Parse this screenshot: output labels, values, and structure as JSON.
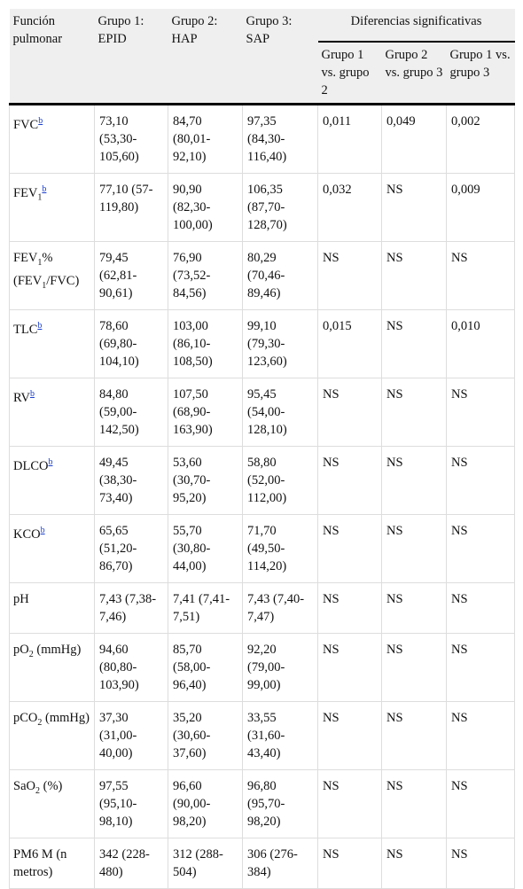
{
  "table": {
    "header": {
      "label": "Función pulmonar",
      "groups": [
        "Grupo 1: EPID",
        "Grupo 2: HAP",
        "Grupo 3: SAP"
      ],
      "differences": "Diferencias significativas",
      "comparisons": [
        "Grupo 1 vs. grupo 2",
        "Grupo 2 vs. grupo 3",
        "Grupo 1 vs. grupo 3"
      ]
    },
    "rows": [
      {
        "label": [
          {
            "text": "FVC"
          },
          {
            "sup": "b"
          }
        ],
        "cells": [
          "73,10 (53,30-105,60)",
          "84,70 (80,01-92,10)",
          "97,35 (84,30-116,40)",
          "0,011",
          "0,049",
          "0,002"
        ]
      },
      {
        "label": [
          {
            "text": "FEV"
          },
          {
            "sub": "1"
          },
          {
            "sup": "b"
          }
        ],
        "cells": [
          "77,10 (57-119,80)",
          "90,90 (82,30-100,00)",
          "106,35 (87,70-128,70)",
          "0,032",
          "NS",
          "0,009"
        ]
      },
      {
        "label": [
          {
            "text": "FEV"
          },
          {
            "sub": "1"
          },
          {
            "text": "% (FEV"
          },
          {
            "sub": "1"
          },
          {
            "text": "/FVC)"
          }
        ],
        "cells": [
          "79,45 (62,81-90,61)",
          "76,90 (73,52-84,56)",
          "80,29 (70,46-89,46)",
          "NS",
          "NS",
          "NS"
        ]
      },
      {
        "label": [
          {
            "text": "TLC"
          },
          {
            "sup": "b"
          }
        ],
        "cells": [
          "78,60 (69,80-104,10)",
          "103,00 (86,10-108,50)",
          "99,10 (79,30-123,60)",
          "0,015",
          "NS",
          "0,010"
        ]
      },
      {
        "label": [
          {
            "text": "RV"
          },
          {
            "sup": "b"
          }
        ],
        "cells": [
          "84,80 (59,00-142,50)",
          "107,50 (68,90-163,90)",
          "95,45 (54,00-128,10)",
          "NS",
          "NS",
          "NS"
        ]
      },
      {
        "label": [
          {
            "text": "DLCO"
          },
          {
            "sup": "b"
          }
        ],
        "cells": [
          "49,45 (38,30-73,40)",
          "53,60 (30,70-95,20)",
          "58,80 (52,00-112,00)",
          "NS",
          "NS",
          "NS"
        ]
      },
      {
        "label": [
          {
            "text": "KCO"
          },
          {
            "sup": "b"
          }
        ],
        "cells": [
          "65,65 (51,20-86,70)",
          "55,70 (30,80-44,00)",
          "71,70 (49,50-114,20)",
          "NS",
          "NS",
          "NS"
        ]
      },
      {
        "label": [
          {
            "text": "pH"
          }
        ],
        "cells": [
          "7,43 (7,38-7,46)",
          "7,41 (7,41-7,51)",
          "7,43 (7,40-7,47)",
          "NS",
          "NS",
          "NS"
        ]
      },
      {
        "label": [
          {
            "text": "pO"
          },
          {
            "sub": "2"
          },
          {
            "text": " (mmHg)"
          }
        ],
        "cells": [
          "94,60 (80,80-103,90)",
          "85,70 (58,00-96,40)",
          "92,20 (79,00-99,00)",
          "NS",
          "NS",
          "NS"
        ]
      },
      {
        "label": [
          {
            "text": "pCO"
          },
          {
            "sub": "2"
          },
          {
            "text": " (mmHg)"
          }
        ],
        "cells": [
          "37,30 (31,00-40,00)",
          "35,20 (30,60-37,60)",
          "33,55 (31,60-43,40)",
          "NS",
          "NS",
          "NS"
        ]
      },
      {
        "label": [
          {
            "text": "SaO"
          },
          {
            "sub": "2"
          },
          {
            "text": " (%)"
          }
        ],
        "cells": [
          "97,55 (95,10-98,10)",
          "96,60 (90,00-98,20)",
          "96,80 (95,70-98,20)",
          "NS",
          "NS",
          "NS"
        ]
      },
      {
        "label": [
          {
            "text": "PM6 M (n metros)"
          }
        ],
        "cells": [
          "342 (228-480)",
          "312 (288-504)",
          "306 (276-384)",
          "NS",
          "NS",
          "NS"
        ]
      }
    ]
  }
}
